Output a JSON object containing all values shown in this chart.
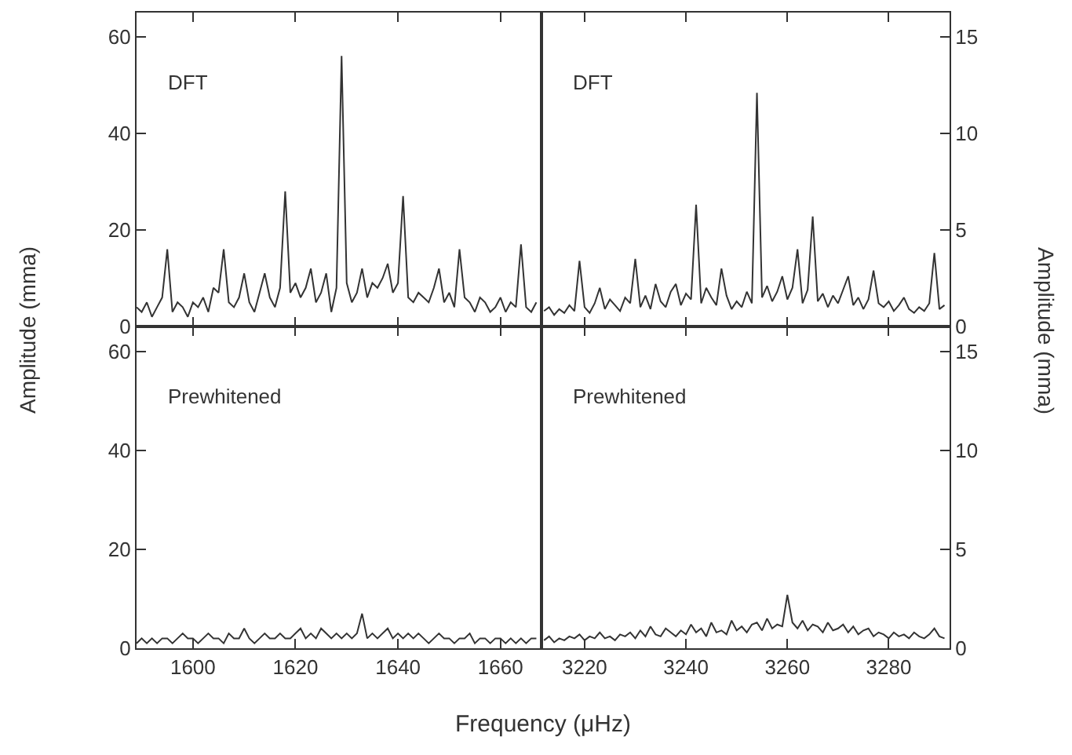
{
  "chart_data": [
    {
      "type": "line",
      "ylabel": "Amplitude (mma)",
      "annotations": [
        "DFT"
      ],
      "xlim": [
        1589,
        1668
      ],
      "xticks": [
        1600,
        1620,
        1640,
        1660
      ],
      "ylim": [
        0,
        65
      ],
      "yticks": [
        0,
        20,
        40,
        60
      ],
      "tick_labels": "y",
      "series": [
        {
          "color": "#333333",
          "x": [
            1589,
            1590,
            1591,
            1592,
            1593,
            1594,
            1595,
            1596,
            1597,
            1598,
            1599,
            1600,
            1601,
            1602,
            1603,
            1604,
            1605,
            1606,
            1607,
            1608,
            1609,
            1610,
            1611,
            1612,
            1613,
            1614,
            1615,
            1616,
            1617,
            1618,
            1619,
            1620,
            1621,
            1622,
            1623,
            1624,
            1625,
            1626,
            1627,
            1628,
            1629,
            1630,
            1631,
            1632,
            1633,
            1634,
            1635,
            1636,
            1637,
            1638,
            1639,
            1640,
            1641,
            1642,
            1643,
            1644,
            1645,
            1646,
            1647,
            1648,
            1649,
            1650,
            1651,
            1652,
            1653,
            1654,
            1655,
            1656,
            1657,
            1658,
            1659,
            1660,
            1661,
            1662,
            1663,
            1664,
            1665,
            1666,
            1667
          ],
          "values": [
            4,
            3,
            5,
            2,
            4,
            6,
            16,
            3,
            5,
            4,
            2,
            5,
            4,
            6,
            3,
            8,
            7,
            16,
            5,
            4,
            6,
            11,
            5,
            3,
            7,
            11,
            6,
            4,
            8,
            28,
            7,
            9,
            6,
            8,
            12,
            5,
            7,
            11,
            3,
            8,
            56,
            9,
            5,
            7,
            12,
            6,
            9,
            8,
            10,
            13,
            7,
            9,
            27,
            6,
            5,
            7,
            6,
            5,
            8,
            12,
            5,
            7,
            4,
            16,
            6,
            5,
            3,
            6,
            5,
            3,
            4,
            6,
            3,
            5,
            4,
            17,
            4,
            3,
            5
          ]
        }
      ]
    },
    {
      "type": "line",
      "y2label": "Amplitude (mma)",
      "annotations": [
        "DFT"
      ],
      "xlim": [
        3211.5,
        3292
      ],
      "xticks": [
        3220,
        3240,
        3260,
        3280
      ],
      "y2lim": [
        0,
        16.25
      ],
      "y2ticks": [
        0,
        5,
        10,
        15
      ],
      "tick_labels": "y",
      "series": [
        {
          "color": "#333333",
          "axis": "y2",
          "x": [
            3212,
            3213,
            3214,
            3215,
            3216,
            3217,
            3218,
            3219,
            3220,
            3221,
            3222,
            3223,
            3224,
            3225,
            3226,
            3227,
            3228,
            3229,
            3230,
            3231,
            3232,
            3233,
            3234,
            3235,
            3236,
            3237,
            3238,
            3239,
            3240,
            3241,
            3242,
            3243,
            3244,
            3245,
            3246,
            3247,
            3248,
            3249,
            3250,
            3251,
            3252,
            3253,
            3254,
            3255,
            3256,
            3257,
            3258,
            3259,
            3260,
            3261,
            3262,
            3263,
            3264,
            3265,
            3266,
            3267,
            3268,
            3269,
            3270,
            3271,
            3272,
            3273,
            3274,
            3275,
            3276,
            3277,
            3278,
            3279,
            3280,
            3281,
            3282,
            3283,
            3284,
            3285,
            3286,
            3287,
            3288,
            3289,
            3290,
            3291
          ],
          "values": [
            0.8,
            1.0,
            0.6,
            0.9,
            0.7,
            1.1,
            0.8,
            3.4,
            1.0,
            0.7,
            1.2,
            2.0,
            0.9,
            1.4,
            1.1,
            0.8,
            1.5,
            1.2,
            3.5,
            1.0,
            1.6,
            0.9,
            2.2,
            1.3,
            1.0,
            1.8,
            2.2,
            1.1,
            1.7,
            1.4,
            6.3,
            1.2,
            2.0,
            1.5,
            1.1,
            3.0,
            1.6,
            0.9,
            1.3,
            1.0,
            1.8,
            1.2,
            12.1,
            1.5,
            2.1,
            1.3,
            1.8,
            2.6,
            1.4,
            2.0,
            4.0,
            1.2,
            1.9,
            5.7,
            1.3,
            1.7,
            1.0,
            1.6,
            1.2,
            1.9,
            2.6,
            1.1,
            1.5,
            0.9,
            1.4,
            2.9,
            1.2,
            1.0,
            1.3,
            0.8,
            1.1,
            1.5,
            0.9,
            0.7,
            1.0,
            0.8,
            1.2,
            3.8,
            0.9,
            1.1
          ]
        }
      ]
    },
    {
      "type": "line",
      "xlabel": "Frequency (μHz)",
      "annotations": [
        "Prewhitened"
      ],
      "xlim": [
        1589,
        1668
      ],
      "xticks": [
        1600,
        1620,
        1640,
        1660
      ],
      "ylim": [
        0,
        65
      ],
      "yticks": [
        0,
        20,
        40,
        60
      ],
      "series": [
        {
          "color": "#333333",
          "x": [
            1589,
            1590,
            1591,
            1592,
            1593,
            1594,
            1595,
            1596,
            1597,
            1598,
            1599,
            1600,
            1601,
            1602,
            1603,
            1604,
            1605,
            1606,
            1607,
            1608,
            1609,
            1610,
            1611,
            1612,
            1613,
            1614,
            1615,
            1616,
            1617,
            1618,
            1619,
            1620,
            1621,
            1622,
            1623,
            1624,
            1625,
            1626,
            1627,
            1628,
            1629,
            1630,
            1631,
            1632,
            1633,
            1634,
            1635,
            1636,
            1637,
            1638,
            1639,
            1640,
            1641,
            1642,
            1643,
            1644,
            1645,
            1646,
            1647,
            1648,
            1649,
            1650,
            1651,
            1652,
            1653,
            1654,
            1655,
            1656,
            1657,
            1658,
            1659,
            1660,
            1661,
            1662,
            1663,
            1664,
            1665,
            1666,
            1667
          ],
          "values": [
            1,
            2,
            1,
            2,
            1,
            2,
            2,
            1,
            2,
            3,
            2,
            2,
            1,
            2,
            3,
            2,
            2,
            1,
            3,
            2,
            2,
            4,
            2,
            1,
            2,
            3,
            2,
            2,
            3,
            2,
            2,
            3,
            4,
            2,
            3,
            2,
            4,
            3,
            2,
            3,
            2,
            3,
            2,
            3,
            7,
            2,
            3,
            2,
            3,
            4,
            2,
            3,
            2,
            3,
            2,
            3,
            2,
            1,
            2,
            3,
            2,
            2,
            1,
            2,
            2,
            3,
            1,
            2,
            2,
            1,
            2,
            2,
            1,
            2,
            1,
            2,
            1,
            2,
            2
          ]
        }
      ]
    },
    {
      "type": "line",
      "annotations": [
        "Prewhitened"
      ],
      "xlim": [
        3211.5,
        3292
      ],
      "xticks": [
        3220,
        3240,
        3260,
        3280
      ],
      "y2lim": [
        0,
        16.25
      ],
      "y2ticks": [
        0,
        5,
        10,
        15
      ],
      "series": [
        {
          "color": "#333333",
          "axis": "y2",
          "x": [
            3212,
            3213,
            3214,
            3215,
            3216,
            3217,
            3218,
            3219,
            3220,
            3221,
            3222,
            3223,
            3224,
            3225,
            3226,
            3227,
            3228,
            3229,
            3230,
            3231,
            3232,
            3233,
            3234,
            3235,
            3236,
            3237,
            3238,
            3239,
            3240,
            3241,
            3242,
            3243,
            3244,
            3245,
            3246,
            3247,
            3248,
            3249,
            3250,
            3251,
            3252,
            3253,
            3254,
            3255,
            3256,
            3257,
            3258,
            3259,
            3260,
            3261,
            3262,
            3263,
            3264,
            3265,
            3266,
            3267,
            3268,
            3269,
            3270,
            3271,
            3272,
            3273,
            3274,
            3275,
            3276,
            3277,
            3278,
            3279,
            3280,
            3281,
            3282,
            3283,
            3284,
            3285,
            3286,
            3287,
            3288,
            3289,
            3290,
            3291
          ],
          "values": [
            0.4,
            0.6,
            0.3,
            0.5,
            0.4,
            0.6,
            0.5,
            0.7,
            0.4,
            0.6,
            0.5,
            0.8,
            0.5,
            0.6,
            0.4,
            0.7,
            0.6,
            0.8,
            0.5,
            0.9,
            0.6,
            1.1,
            0.7,
            0.6,
            1.0,
            0.8,
            0.6,
            0.9,
            0.7,
            1.2,
            0.8,
            1.0,
            0.6,
            1.3,
            0.8,
            0.9,
            0.7,
            1.4,
            0.9,
            1.1,
            0.8,
            1.2,
            1.3,
            0.9,
            1.5,
            1.0,
            1.2,
            1.1,
            2.7,
            1.3,
            1.0,
            1.4,
            0.9,
            1.2,
            1.1,
            0.8,
            1.3,
            0.9,
            1.0,
            1.2,
            0.8,
            1.1,
            0.7,
            0.9,
            1.0,
            0.6,
            0.8,
            0.7,
            0.5,
            0.8,
            0.6,
            0.7,
            0.5,
            0.8,
            0.6,
            0.5,
            0.7,
            1.0,
            0.6,
            0.5
          ]
        }
      ]
    }
  ]
}
